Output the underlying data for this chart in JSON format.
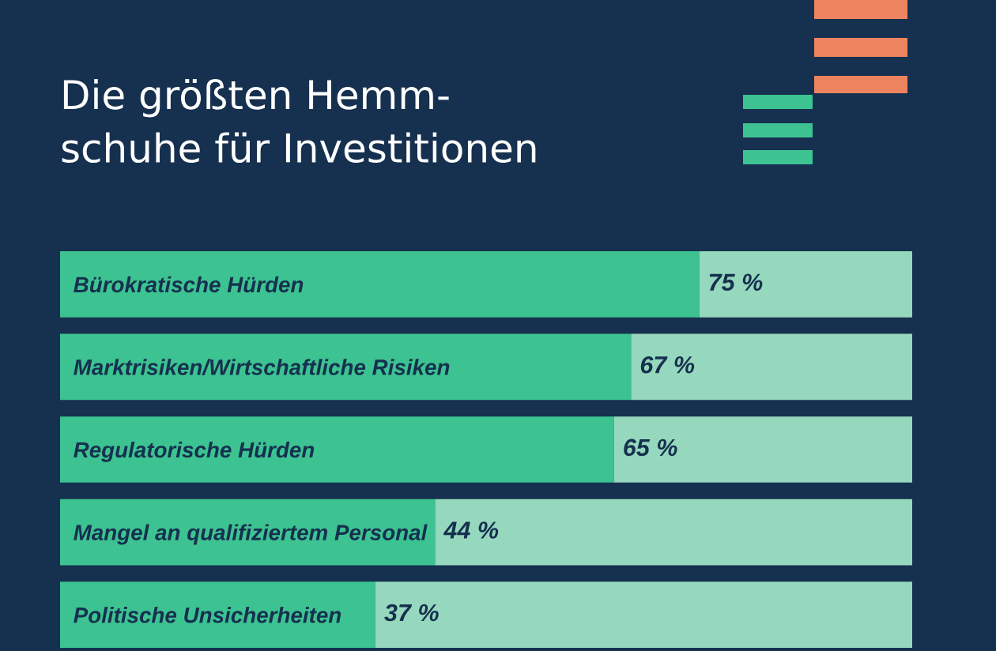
{
  "chart_data": {
    "type": "bar",
    "orientation": "horizontal",
    "stacked": true,
    "title": "Die größten Hemm-\nschuhe für Investitionen",
    "categories": [
      "Bürokratische Hürden",
      "Marktrisiken/Wirtschaftliche Risiken",
      "Regulatorische Hürden",
      "Mangel an qualifiziertem Personal",
      "Politische Unsicherheiten"
    ],
    "series": [
      {
        "color": "#3cc391",
        "values": [
          75,
          67,
          65,
          44,
          37
        ],
        "value_labels": [
          "75 %",
          "67 %",
          "65 %",
          "44 %",
          "37 %"
        ]
      },
      {
        "color": "#96d8bd",
        "values": [
          25,
          33,
          35,
          56,
          63
        ]
      }
    ],
    "xlim": [
      0,
      100
    ],
    "tick_labels": "y"
  }
}
